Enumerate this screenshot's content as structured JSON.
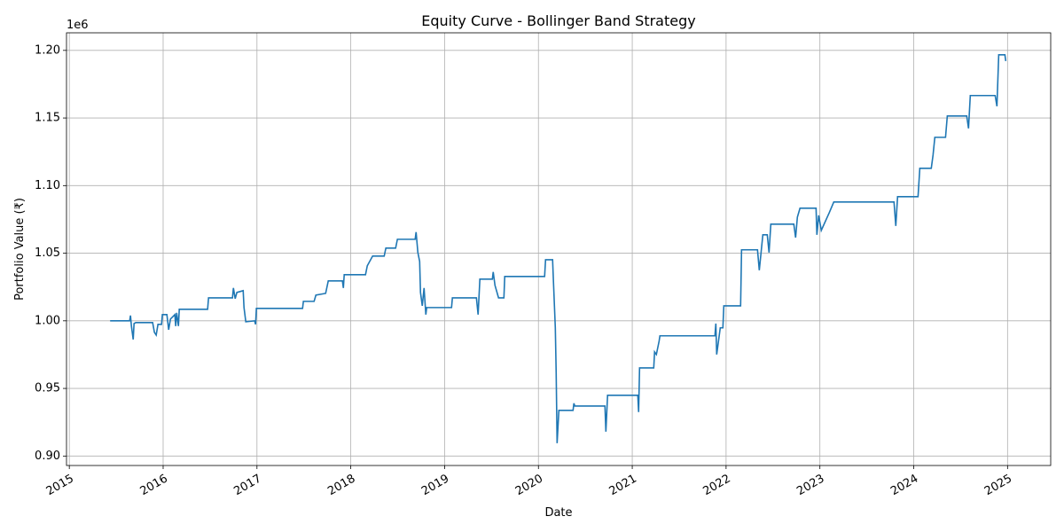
{
  "chart_data": {
    "type": "line",
    "title": "Equity Curve - Bollinger Band Strategy",
    "x_label": "Date",
    "y_label": "Portfolio Value (₹)",
    "y_offset_label": "1e6",
    "color": "#1f77b4",
    "grid": true,
    "xlim": [
      2014.97,
      2025.46
    ],
    "xticks": [
      2015,
      2016,
      2017,
      2018,
      2019,
      2020,
      2021,
      2022,
      2023,
      2024,
      2025
    ],
    "ylim": [
      0.893,
      1.213
    ],
    "yticks": [
      {
        "value": 0.9,
        "label": "0.90"
      },
      {
        "value": 0.95,
        "label": "0.95"
      },
      {
        "value": 1.0,
        "label": "1.00"
      },
      {
        "value": 1.05,
        "label": "1.05"
      },
      {
        "value": 1.1,
        "label": "1.10"
      },
      {
        "value": 1.15,
        "label": "1.15"
      },
      {
        "value": 1.2,
        "label": "1.20"
      }
    ],
    "x": [
      2015.435,
      2015.643,
      2015.652,
      2015.662,
      2015.681,
      2015.69,
      2015.709,
      2015.888,
      2015.907,
      2015.926,
      2015.945,
      2015.983,
      2015.992,
      2016.04,
      2016.059,
      2016.078,
      2016.125,
      2016.134,
      2016.144,
      2016.163,
      2016.172,
      2016.474,
      2016.484,
      2016.739,
      2016.749,
      2016.768,
      2016.786,
      2016.853,
      2016.862,
      2016.881,
      2016.975,
      2016.985,
      2016.994,
      2017.486,
      2017.495,
      2017.609,
      2017.628,
      2017.732,
      2017.76,
      2017.911,
      2017.921,
      2017.93,
      2018.157,
      2018.176,
      2018.233,
      2018.356,
      2018.374,
      2018.478,
      2018.497,
      2018.686,
      2018.696,
      2018.715,
      2018.734,
      2018.743,
      2018.762,
      2018.781,
      2018.8,
      2018.809,
      2019.074,
      2019.083,
      2019.339,
      2019.357,
      2019.376,
      2019.509,
      2019.518,
      2019.537,
      2019.575,
      2019.632,
      2019.641,
      2020.066,
      2020.076,
      2020.151,
      2020.161,
      2020.18,
      2020.189,
      2020.199,
      2020.218,
      2020.369,
      2020.378,
      2020.388,
      2020.709,
      2020.719,
      2020.737,
      2021.059,
      2021.068,
      2021.078,
      2021.229,
      2021.238,
      2021.257,
      2021.286,
      2021.295,
      2021.881,
      2021.891,
      2021.9,
      2021.919,
      2021.938,
      2021.966,
      2021.976,
      2022.155,
      2022.165,
      2022.335,
      2022.354,
      2022.373,
      2022.392,
      2022.439,
      2022.458,
      2022.477,
      2022.722,
      2022.741,
      2022.76,
      2022.788,
      2022.959,
      2022.968,
      2022.987,
      2023.015,
      2023.1,
      2023.148,
      2023.79,
      2023.809,
      2023.828,
      2024.046,
      2024.065,
      2024.187,
      2024.206,
      2024.225,
      2024.339,
      2024.358,
      2024.565,
      2024.584,
      2024.603,
      2024.868,
      2024.887,
      2024.906,
      2024.972,
      2024.981
    ],
    "values": [
      1.0,
      1.0,
      1.0039,
      0.9961,
      0.9862,
      0.998,
      0.9987,
      0.9987,
      0.9915,
      0.9895,
      0.9974,
      0.9974,
      1.0046,
      1.0046,
      0.9934,
      1.0013,
      1.0046,
      0.9961,
      1.0059,
      0.9961,
      1.0085,
      1.0085,
      1.017,
      1.017,
      1.0243,
      1.0164,
      1.021,
      1.0223,
      1.0098,
      0.9993,
      1.0,
      0.9974,
      1.0092,
      1.0092,
      1.0144,
      1.0144,
      1.019,
      1.0203,
      1.0295,
      1.0295,
      1.0243,
      1.0341,
      1.0341,
      1.0407,
      1.0479,
      1.0479,
      1.0538,
      1.0538,
      1.0603,
      1.0603,
      1.0656,
      1.0505,
      1.0439,
      1.021,
      1.0111,
      1.0243,
      1.0046,
      1.0098,
      1.0098,
      1.017,
      1.017,
      1.0046,
      1.0308,
      1.0308,
      1.0361,
      1.0262,
      1.017,
      1.017,
      1.0328,
      1.0328,
      1.0452,
      1.0452,
      1.0275,
      0.9948,
      0.962,
      0.9095,
      0.9338,
      0.9338,
      0.939,
      0.937,
      0.937,
      0.918,
      0.9449,
      0.9449,
      0.9325,
      0.9652,
      0.9652,
      0.977,
      0.9751,
      0.9849,
      0.9889,
      0.9889,
      0.998,
      0.9751,
      0.9849,
      0.9948,
      0.9948,
      1.0111,
      1.0111,
      1.0525,
      1.0525,
      1.0374,
      1.0505,
      1.0636,
      1.0636,
      1.0505,
      1.0715,
      1.0715,
      1.0616,
      1.0767,
      1.0833,
      1.0833,
      1.0636,
      1.078,
      1.0669,
      1.08,
      1.0879,
      1.0879,
      1.0702,
      1.0918,
      1.0918,
      1.1128,
      1.1128,
      1.1226,
      1.1357,
      1.1357,
      1.1515,
      1.1515,
      1.1423,
      1.1666,
      1.1666,
      1.1587,
      1.1967,
      1.1967,
      1.1921
    ]
  }
}
